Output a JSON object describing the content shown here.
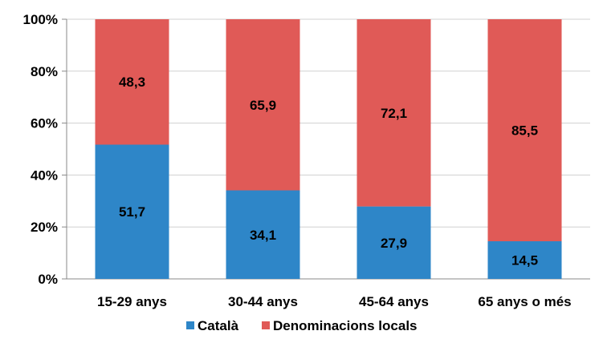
{
  "chart_data": {
    "type": "bar",
    "stacked": true,
    "categories": [
      "15-29 anys",
      "30-44 anys",
      "45-64 anys",
      "65 anys o més"
    ],
    "series": [
      {
        "name": "Català",
        "color": "#2E86C8",
        "values": [
          51.7,
          34.1,
          27.9,
          14.5
        ],
        "labels": [
          "51,7",
          "34,1",
          "27,9",
          "14,5"
        ]
      },
      {
        "name": "Denominacions locals",
        "color": "#E05A57",
        "values": [
          48.3,
          65.9,
          72.1,
          85.5
        ],
        "labels": [
          "48,3",
          "65,9",
          "72,1",
          "85,5"
        ]
      }
    ],
    "ylim": [
      0,
      100
    ],
    "yticks": [
      "0%",
      "20%",
      "40%",
      "60%",
      "80%",
      "100%"
    ],
    "grid": true,
    "legend": "bottom"
  }
}
